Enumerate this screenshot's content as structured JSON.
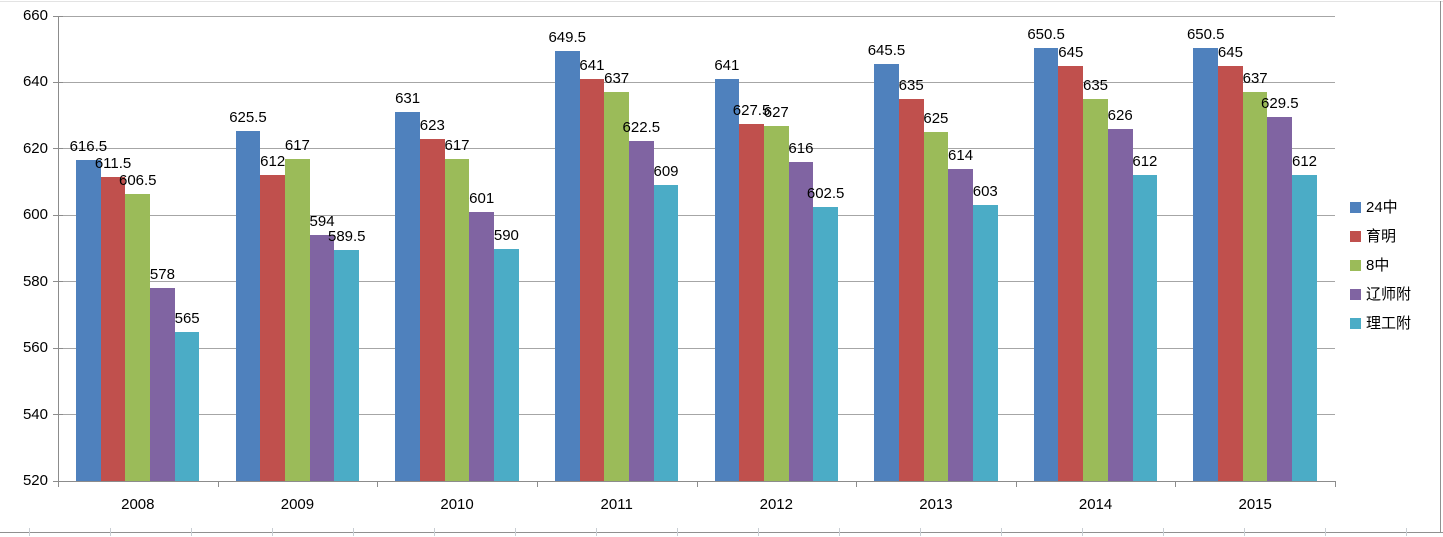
{
  "chart_data": {
    "type": "bar",
    "title": "",
    "xlabel": "",
    "ylabel": "",
    "categories": [
      "2008",
      "2009",
      "2010",
      "2011",
      "2012",
      "2013",
      "2014",
      "2015"
    ],
    "series": [
      {
        "name": "24中",
        "color": "#4F81BD",
        "values": [
          616.5,
          625.5,
          631,
          649.5,
          641,
          645.5,
          650.5,
          650.5
        ]
      },
      {
        "name": "育明",
        "color": "#C0504D",
        "values": [
          611.5,
          612,
          623,
          641,
          627.5,
          635,
          645,
          645
        ]
      },
      {
        "name": "8中",
        "color": "#9BBB59",
        "values": [
          606.5,
          617,
          617,
          637,
          627,
          625,
          635,
          637
        ]
      },
      {
        "name": "辽师附",
        "color": "#8064A2",
        "values": [
          578,
          594,
          601,
          622.5,
          616,
          614,
          626,
          629.5
        ]
      },
      {
        "name": "理工附",
        "color": "#4BACC6",
        "values": [
          565,
          589.5,
          590,
          609,
          602.5,
          603,
          612,
          612
        ]
      }
    ],
    "ylim": [
      520,
      660
    ],
    "ytick_step": 20,
    "yticks": [
      520,
      540,
      560,
      580,
      600,
      620,
      640,
      660
    ],
    "grid": true,
    "data_labels": true,
    "legend_position": "right"
  },
  "colors": {
    "gridline": "#A6A6A6",
    "axis": "#8C8C8C",
    "frame": "#909090",
    "frame_top": "#E3E3E3",
    "sheet_tick": "#C9CFD4",
    "label_text": "#000000"
  }
}
